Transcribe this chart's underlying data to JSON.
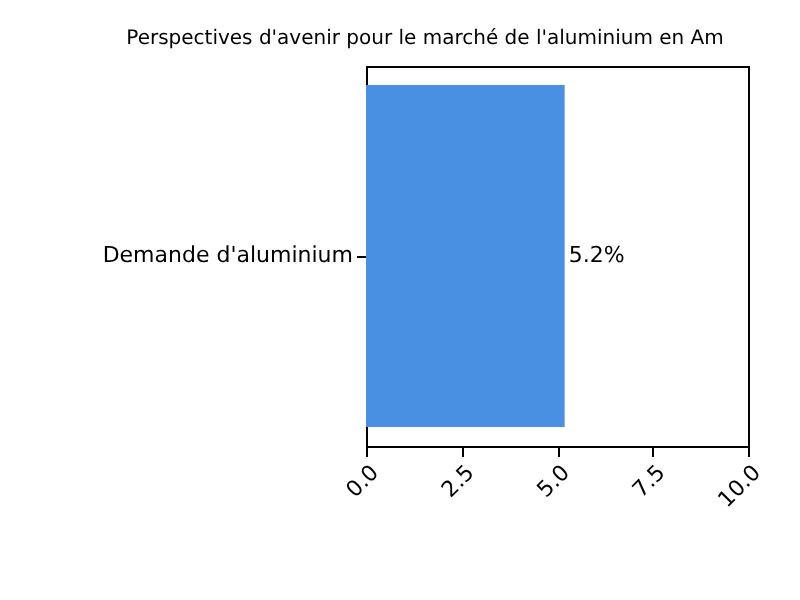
{
  "chart_data": {
    "type": "bar",
    "orientation": "horizontal",
    "title": "Perspectives d'avenir pour le marché de l'aluminium en Am",
    "categories": [
      "Demande d'aluminium"
    ],
    "values": [
      5.2
    ],
    "value_labels": [
      "5.2%"
    ],
    "color": "#4a90e2",
    "xlim": [
      0,
      10
    ],
    "xticks": [
      {
        "value": 0,
        "label": "0.0"
      },
      {
        "value": 2.5,
        "label": "2.5"
      },
      {
        "value": 5,
        "label": "5.0"
      },
      {
        "value": 7.5,
        "label": "7.5"
      },
      {
        "value": 10,
        "label": "10.0"
      }
    ],
    "grid": false
  }
}
